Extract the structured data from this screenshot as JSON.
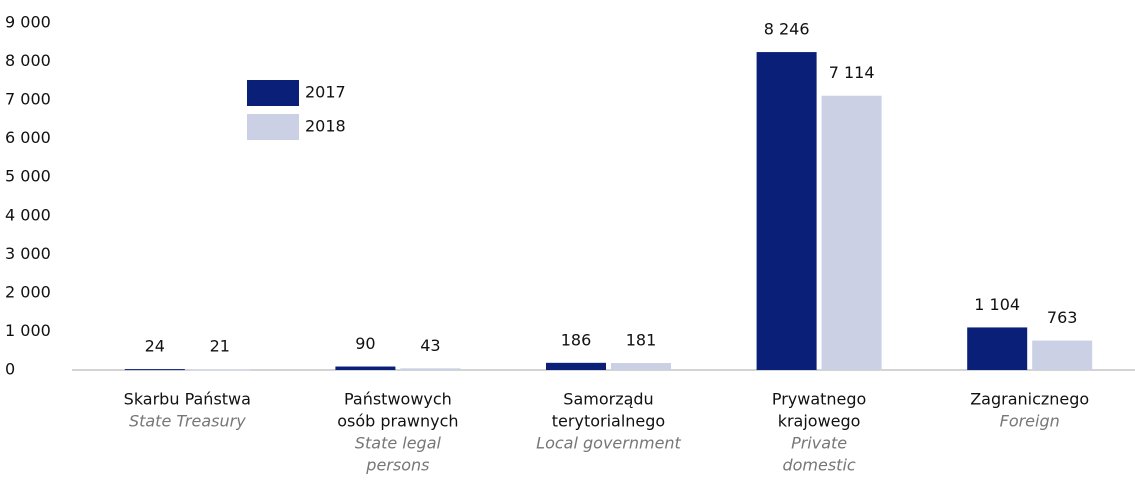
{
  "chart_data": {
    "type": "bar",
    "categories": [
      [
        "Skarbu Państwa"
      ],
      [
        "Państwowych",
        "osób prawnych"
      ],
      [
        "Samorządu",
        "terytorialnego"
      ],
      [
        "Prywatnego",
        "krajowego"
      ],
      [
        "Zagranicznego"
      ]
    ],
    "category_translations": [
      [
        "State Treasury"
      ],
      [
        "State legal",
        "persons"
      ],
      [
        "Local government"
      ],
      [
        "Private",
        "domestic"
      ],
      [
        "Foreign"
      ]
    ],
    "series": [
      {
        "name": "2017",
        "color": "#0a1f78",
        "values": [
          24,
          90,
          186,
          8246,
          1104
        ],
        "value_labels": [
          "24",
          "90",
          "186",
          "8 246",
          "1 104"
        ]
      },
      {
        "name": "2018",
        "color": "#cbd0e4",
        "values": [
          21,
          43,
          181,
          7114,
          763
        ],
        "value_labels": [
          "21",
          "43",
          "181",
          "7 114",
          "763"
        ]
      }
    ],
    "ylim": [
      0,
      9000
    ],
    "yticks": [
      0,
      {
        "value": 1000,
        "label": "1 000"
      },
      {
        "value": 2000,
        "label": "2 000"
      },
      {
        "value": 3000,
        "label": "3 000"
      },
      {
        "value": 4000,
        "label": "4 000"
      },
      {
        "value": 5000,
        "label": "5 000"
      },
      {
        "value": 6000,
        "label": "6 000"
      },
      {
        "value": 7000,
        "label": "7 000"
      },
      {
        "value": 8000,
        "label": "8 000"
      },
      {
        "value": 9000,
        "label": "9 000"
      }
    ],
    "grid": false
  }
}
